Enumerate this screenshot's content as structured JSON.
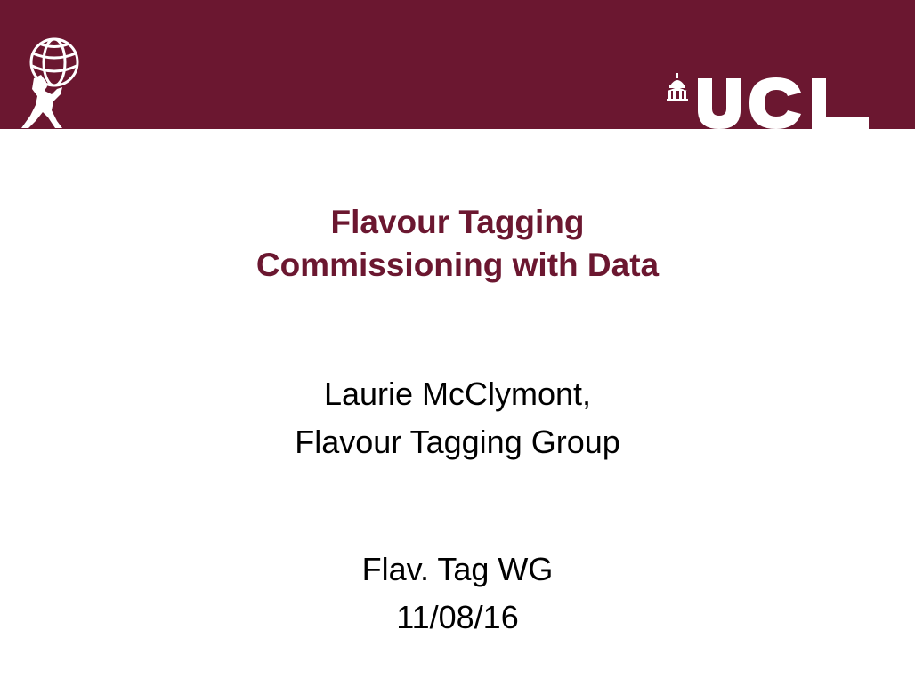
{
  "colors": {
    "brand": "#6b1730",
    "background": "#ffffff",
    "text": "#000000",
    "logo": "#ffffff"
  },
  "logos": {
    "atlas": "atlas-figure-logo",
    "ucl": "UCL"
  },
  "slide": {
    "title_lines": [
      "Flavour Tagging",
      "Commissioning with Data"
    ],
    "author_lines": [
      "Laurie McClymont,",
      "Flavour Tagging Group"
    ],
    "meeting_lines": [
      "Flav. Tag WG",
      "11/08/16"
    ]
  }
}
